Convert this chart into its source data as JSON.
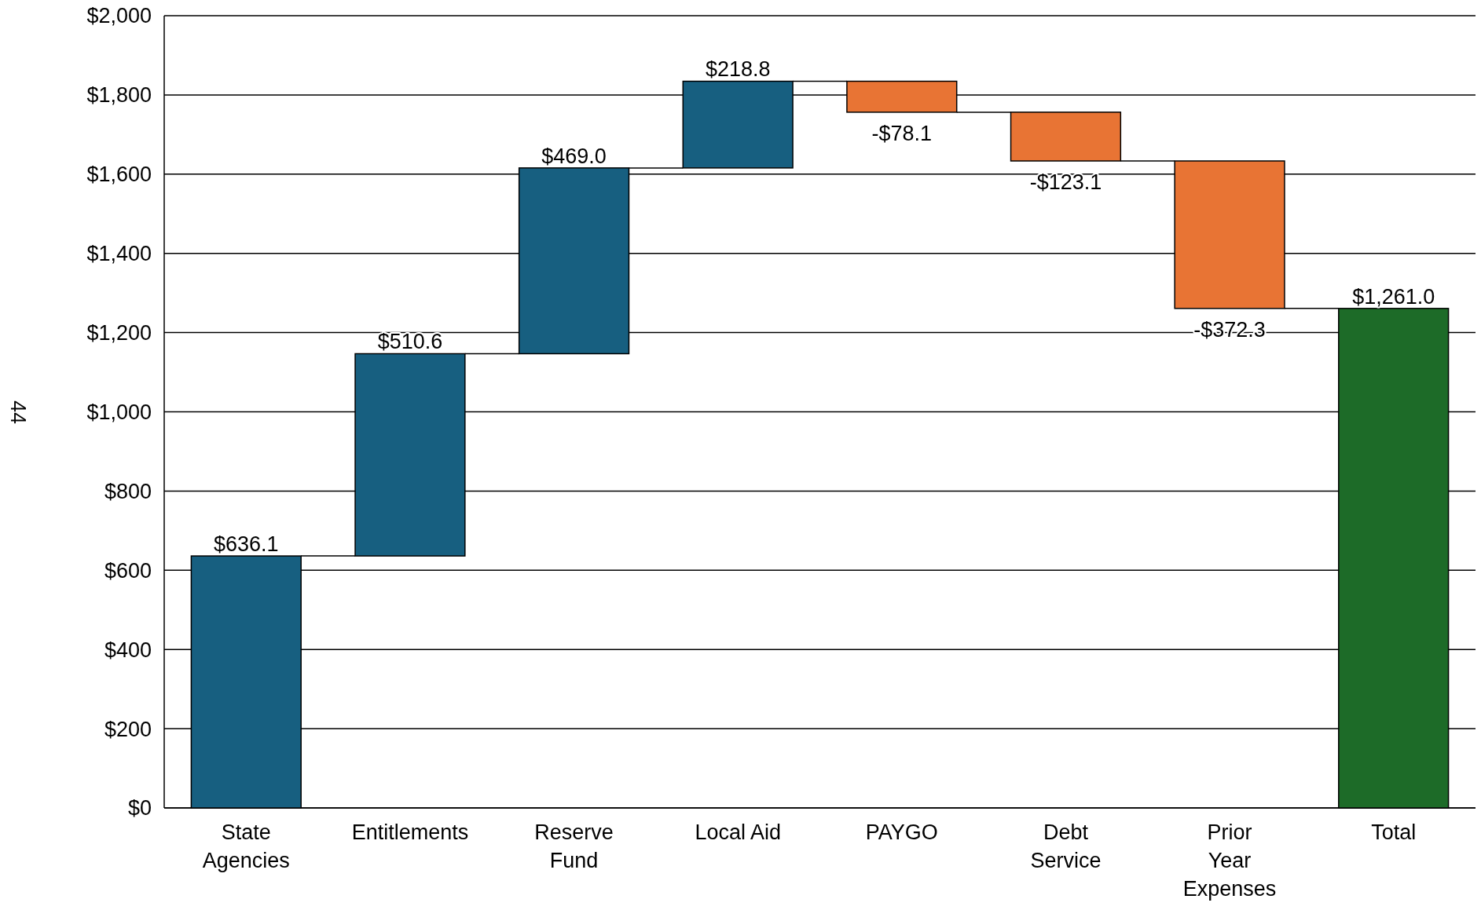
{
  "chart_data": {
    "type": "bar",
    "categories": [
      "State Agencies",
      "Entitlements",
      "Reserve Fund",
      "Local Aid",
      "PAYGO",
      "Debt Service",
      "Prior Year Expenses",
      "Total"
    ],
    "values": [
      636.1,
      510.6,
      469.0,
      218.8,
      -78.1,
      -123.1,
      -372.3,
      1261.0
    ],
    "base": [
      0,
      636.1,
      1146.7,
      1615.7,
      1834.5,
      1756.4,
      1633.3,
      0
    ],
    "colors": [
      "#175f80",
      "#175f80",
      "#175f80",
      "#175f80",
      "#e87434",
      "#e87434",
      "#e87434",
      "#1d6b28"
    ],
    "value_labels": [
      "$636.1",
      "$510.6",
      "$469.0",
      "$218.8",
      "-$78.1",
      "-$123.1",
      "-$372.3",
      "$1,261.0"
    ],
    "ylim": [
      0,
      2000
    ],
    "yticks": [
      {
        "value": 0,
        "label": "$0"
      },
      {
        "value": 200,
        "label": "$200"
      },
      {
        "value": 400,
        "label": "$400"
      },
      {
        "value": 600,
        "label": "$600"
      },
      {
        "value": 800,
        "label": "$800"
      },
      {
        "value": 1000,
        "label": "$1,000"
      },
      {
        "value": 1200,
        "label": "$1,200"
      },
      {
        "value": 1400,
        "label": "$1,400"
      },
      {
        "value": 1600,
        "label": "$1,600"
      },
      {
        "value": 1800,
        "label": "$1,800"
      },
      {
        "value": 2000,
        "label": "$2,000"
      }
    ],
    "grid": "y",
    "annotations": [
      "44"
    ]
  }
}
